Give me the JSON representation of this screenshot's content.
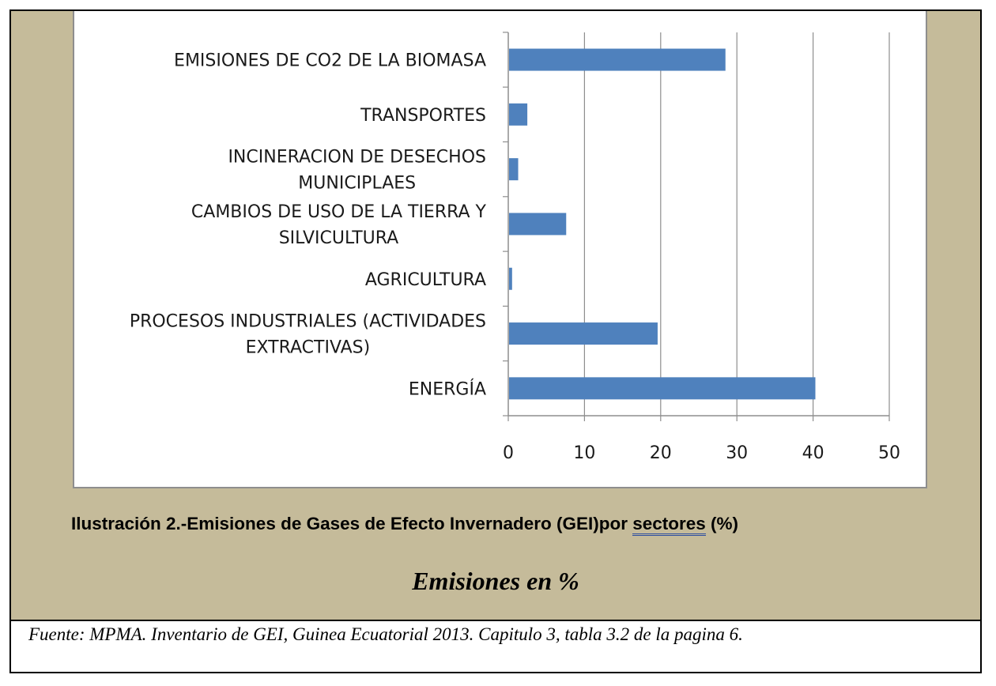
{
  "chart_data": {
    "type": "bar",
    "orientation": "horizontal",
    "categories": [
      "ENERGÍA",
      "PROCESOS INDUSTRIALES (ACTIVIDADES EXTRACTIVAS)",
      "AGRICULTURA",
      "CAMBIOS DE USO DE LA TIERRA Y SILVICULTURA",
      "INCINERACION DE DESECHOS MUNICIPLAES",
      "TRANSPORTES",
      "EMISIONES DE CO2 DE LA BIOMASA"
    ],
    "category_lines": [
      [
        "ENERGÍA"
      ],
      [
        "PROCESOS INDUSTRIALES (ACTIVIDADES",
        "EXTRACTIVAS)"
      ],
      [
        "AGRICULTURA"
      ],
      [
        "CAMBIOS DE USO DE LA TIERRA Y",
        "SILVICULTURA"
      ],
      [
        "INCINERACION DE DESECHOS",
        "MUNICIPLAES"
      ],
      [
        "TRANSPORTES"
      ],
      [
        "EMISIONES DE CO2 DE LA BIOMASA"
      ]
    ],
    "values": [
      40.3,
      19.6,
      0.5,
      7.6,
      1.3,
      2.5,
      28.5
    ],
    "xlim": [
      0,
      50
    ],
    "xticks": [
      0,
      10,
      20,
      30,
      40,
      50
    ],
    "grid": true,
    "bar_color": "#4f81bd",
    "title": "",
    "xlabel": "",
    "ylabel": ""
  },
  "caption": {
    "prefix": "Ilustración 2.-Emisiones de Gases de Efecto Invernadero (GEI)por ",
    "underlined": "sectores",
    "suffix": "  (%)"
  },
  "units_label": "Emisiones en %",
  "source": "Fuente: MPMA. Inventario de GEI, Guinea Ecuatorial 2013.  Capitulo 3, tabla 3.2 de la pagina 6.",
  "colors": {
    "background_panel": "#c5bb9a",
    "bar": "#4f81bd",
    "grid": "#8e8e8e"
  }
}
